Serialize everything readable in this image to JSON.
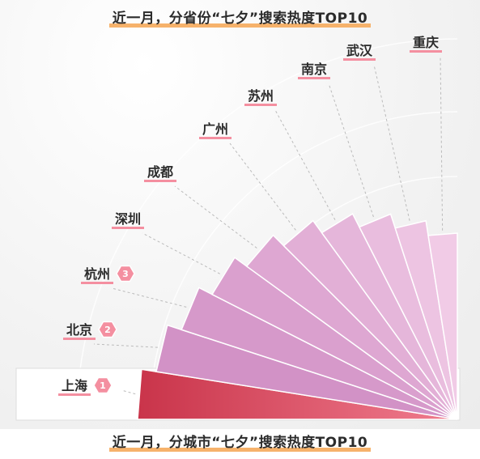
{
  "header": {
    "title": "近一月，分省份“七夕”搜索热度TOP10"
  },
  "footer": {
    "title": "近一月，分城市“七夕”搜索热度TOP10"
  },
  "colors": {
    "top_rank_start": "#c9344a",
    "top_rank_end": "#f07c8e",
    "fan_light": "#f1cbe6",
    "fan_dark": "#d292c6",
    "rank_badge": "#f48fa0",
    "label_underline": "#f48fa0",
    "leader_line": "#bbbbbb"
  },
  "chart_data": {
    "type": "bar",
    "title": "",
    "categories": [
      "上海",
      "北京",
      "杭州",
      "深圳",
      "成都",
      "广州",
      "苏州",
      "南京",
      "武汉",
      "重庆"
    ],
    "ranks": [
      1,
      2,
      3,
      null,
      null,
      null,
      null,
      null,
      null,
      null
    ],
    "highlighted": "上海",
    "grid": false
  }
}
